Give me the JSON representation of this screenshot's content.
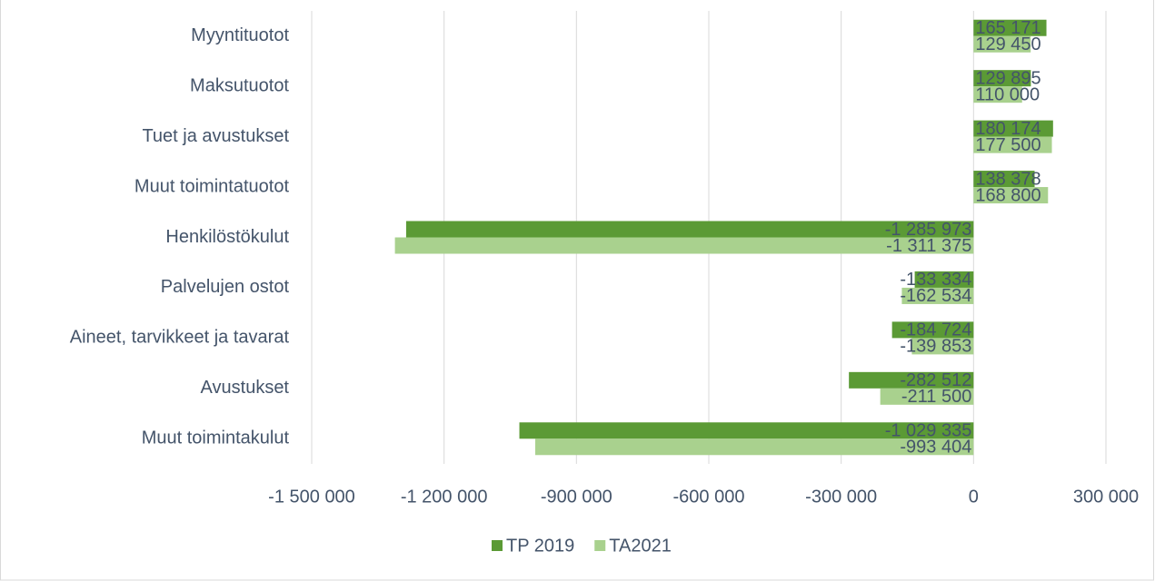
{
  "chart_data": {
    "type": "hbar",
    "categories": [
      "Myyntituotot",
      "Maksutuotot",
      "Tuet ja avustukset",
      "Muut toimintatuotot",
      "Henkilöstökulut",
      "Palvelujen ostot",
      "Aineet, tarvikkeet ja tavarat",
      "Avustukset",
      "Muut toimintakulut"
    ],
    "series": [
      {
        "name": "TP 2019",
        "color": "#5b9a35",
        "values": [
          165171,
          129895,
          180174,
          138378,
          -1285973,
          -133334,
          -184724,
          -282512,
          -1029335
        ],
        "value_labels": [
          "165 171",
          "129 895",
          "180 174",
          "138 378",
          "-1 285 973",
          "-133 334",
          "-184 724",
          "-282 512",
          "-1 029 335"
        ]
      },
      {
        "name": "TA2021",
        "color": "#a9d18e",
        "values": [
          129450,
          110000,
          177500,
          168800,
          -1311375,
          -162534,
          -139853,
          -211500,
          -993404
        ],
        "value_labels": [
          "129 450",
          "110 000",
          "177 500",
          "168 800",
          "-1 311 375",
          "-162 534",
          "-139 853",
          "-211 500",
          "-993 404"
        ]
      }
    ],
    "xlim": [
      -1500000,
      300000
    ],
    "xticks": [
      {
        "value": -1500000,
        "label": "-1 500 000"
      },
      {
        "value": -1200000,
        "label": "-1 200 000"
      },
      {
        "value": -900000,
        "label": "-900 000"
      },
      {
        "value": -600000,
        "label": "-600 000"
      },
      {
        "value": -300000,
        "label": "-300 000"
      },
      0,
      {
        "value": 300000,
        "label": "300 000"
      }
    ],
    "grid": true,
    "legend": "bottom"
  }
}
